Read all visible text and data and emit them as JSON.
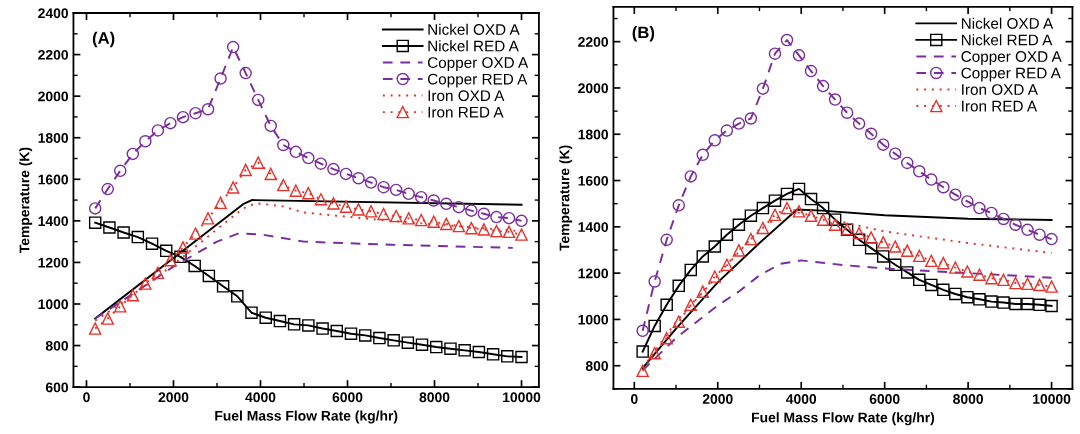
{
  "chart_data": [
    {
      "type": "line",
      "xlabel": "Fuel Mass Flow Rate (kg/hr)",
      "ylabel": "Temperature (K)",
      "annotations": [
        "(A)"
      ],
      "xlim": [
        -300,
        10400
      ],
      "xticks": [
        0,
        2000,
        4000,
        6000,
        8000,
        10000
      ],
      "ylim": [
        600,
        2400
      ],
      "yticks": [
        600,
        800,
        1000,
        1200,
        1400,
        1600,
        1800,
        2000,
        2200,
        2400
      ],
      "grid": false,
      "legend": "top right",
      "series": [
        {
          "name": "Nickel OXD A",
          "color": "#000000",
          "line_style": "solid",
          "x": [
            200,
            3600,
            3800,
            10000
          ],
          "values": [
            930,
            1480,
            1500,
            1478
          ]
        },
        {
          "name": "Nickel RED A",
          "color": "#000000",
          "line_style": "solid",
          "marker": "square",
          "x": [
            200,
            527,
            853,
            1180,
            1507,
            1833,
            2160,
            2487,
            2813,
            3140,
            3467,
            3793,
            4120,
            4447,
            4773,
            5100,
            5427,
            5753,
            6080,
            6407,
            6733,
            7060,
            7387,
            7713,
            8040,
            8367,
            8693,
            9020,
            9347,
            9673,
            10000
          ],
          "values": [
            1391,
            1368,
            1344,
            1322,
            1290,
            1256,
            1227,
            1183,
            1135,
            1085,
            1037,
            958,
            934,
            918,
            902,
            897,
            882,
            870,
            857,
            849,
            836,
            825,
            814,
            804,
            793,
            785,
            777,
            769,
            758,
            748,
            745
          ]
        },
        {
          "name": "Copper OXD A",
          "color": "#7b2d9e",
          "line_style": "dashed",
          "x": [
            200,
            1000,
            2000,
            3000,
            3500,
            4000,
            5000,
            7000,
            9800
          ],
          "values": [
            930,
            1040,
            1180,
            1300,
            1340,
            1335,
            1300,
            1285,
            1270
          ]
        },
        {
          "name": "Copper RED A",
          "color": "#7b2d9e",
          "line_style": "dashed",
          "marker": "circle",
          "x": [
            200,
            488,
            776,
            1065,
            1353,
            1641,
            1929,
            2218,
            2506,
            2794,
            3082,
            3371,
            3659,
            3947,
            4235,
            4524,
            4812,
            5100,
            5388,
            5676,
            5965,
            6253,
            6541,
            6829,
            7118,
            7406,
            7694,
            7982,
            8271,
            8559,
            8847,
            9135,
            9424,
            9712,
            10000
          ],
          "values": [
            1460,
            1553,
            1641,
            1722,
            1783,
            1835,
            1870,
            1899,
            1918,
            1937,
            2085,
            2236,
            2111,
            1982,
            1857,
            1765,
            1732,
            1702,
            1675,
            1649,
            1626,
            1605,
            1584,
            1562,
            1549,
            1530,
            1514,
            1498,
            1482,
            1466,
            1449,
            1434,
            1418,
            1413,
            1400
          ]
        },
        {
          "name": "Iron OXD A",
          "color": "#e8302a",
          "line_style": "dotted",
          "x": [
            200,
            1000,
            2000,
            3000,
            3600,
            3900,
            4500,
            5000,
            7000,
            10000
          ],
          "values": [
            920,
            1030,
            1190,
            1360,
            1460,
            1485,
            1470,
            1440,
            1400,
            1350
          ]
        },
        {
          "name": "Iron RED A",
          "color": "#e8302a",
          "line_style": "dotted",
          "marker": "triangle",
          "x": [
            200,
            488,
            776,
            1065,
            1353,
            1641,
            1929,
            2218,
            2506,
            2794,
            3082,
            3371,
            3659,
            3947,
            4235,
            4524,
            4812,
            5100,
            5388,
            5676,
            5965,
            6253,
            6541,
            6829,
            7118,
            7406,
            7694,
            7982,
            8271,
            8559,
            8847,
            9135,
            9424,
            9712,
            10000
          ],
          "values": [
            882,
            930,
            989,
            1042,
            1098,
            1150,
            1211,
            1272,
            1339,
            1412,
            1487,
            1561,
            1645,
            1680,
            1626,
            1572,
            1545,
            1533,
            1504,
            1484,
            1468,
            1455,
            1446,
            1433,
            1423,
            1412,
            1404,
            1396,
            1385,
            1375,
            1365,
            1359,
            1351,
            1347,
            1334
          ]
        }
      ]
    },
    {
      "type": "line",
      "xlabel": "Fuel Mass Flow Rate (kg/hr)",
      "ylabel": "Temperature (K)",
      "annotations": [
        "(B)"
      ],
      "xlim": [
        -500,
        10500
      ],
      "xticks": [
        0,
        2000,
        4000,
        6000,
        8000,
        10000
      ],
      "ylim": [
        700,
        2350
      ],
      "yticks": [
        800,
        1000,
        1200,
        1400,
        1600,
        1800,
        2000,
        2200
      ],
      "grid": false,
      "legend": "top right",
      "series": [
        {
          "name": "Nickel OXD A",
          "color": "#000000",
          "line_style": "solid",
          "x": [
            200,
            1000,
            2000,
            3000,
            3900,
            4500,
            6000,
            8000,
            10000
          ],
          "values": [
            790,
            960,
            1160,
            1330,
            1475,
            1470,
            1450,
            1435,
            1430
          ]
        },
        {
          "name": "Nickel RED A",
          "color": "#000000",
          "line_style": "solid",
          "marker": "square",
          "x": [
            200,
            488,
            776,
            1065,
            1353,
            1641,
            1929,
            2218,
            2506,
            2794,
            3082,
            3371,
            3659,
            3947,
            4235,
            4524,
            4812,
            5100,
            5388,
            5676,
            5965,
            6253,
            6541,
            6829,
            7118,
            7406,
            7694,
            7982,
            8271,
            8559,
            8847,
            9135,
            9424,
            9712,
            10000
          ],
          "values": [
            861,
            972,
            1063,
            1145,
            1214,
            1272,
            1315,
            1366,
            1409,
            1448,
            1481,
            1513,
            1542,
            1564,
            1520,
            1481,
            1431,
            1387,
            1344,
            1308,
            1272,
            1236,
            1203,
            1171,
            1149,
            1128,
            1110,
            1096,
            1087,
            1077,
            1073,
            1067,
            1067,
            1063,
            1058
          ]
        },
        {
          "name": "Copper OXD A",
          "color": "#7b2d9e",
          "line_style": "dashed",
          "x": [
            200,
            1000,
            2000,
            2500,
            3000,
            3500,
            4000,
            5000,
            6000,
            8000,
            10000
          ],
          "values": [
            780,
            920,
            1060,
            1120,
            1190,
            1240,
            1255,
            1235,
            1220,
            1200,
            1180
          ]
        },
        {
          "name": "Copper RED A",
          "color": "#7b2d9e",
          "line_style": "dashed",
          "marker": "circle",
          "x": [
            200,
            488,
            776,
            1065,
            1353,
            1641,
            1929,
            2218,
            2506,
            2794,
            3082,
            3371,
            3659,
            3947,
            4235,
            4524,
            4812,
            5100,
            5388,
            5676,
            5965,
            6253,
            6541,
            6829,
            7118,
            7406,
            7694,
            7982,
            8271,
            8559,
            8847,
            9135,
            9424,
            9712,
            10000
          ],
          "values": [
            951,
            1164,
            1344,
            1493,
            1618,
            1711,
            1774,
            1816,
            1846,
            1868,
            1997,
            2148,
            2207,
            2141,
            2073,
            2008,
            1950,
            1893,
            1846,
            1802,
            1755,
            1716,
            1676,
            1640,
            1604,
            1571,
            1539,
            1510,
            1481,
            1460,
            1434,
            1409,
            1387,
            1366,
            1347
          ]
        },
        {
          "name": "Iron OXD A",
          "color": "#e8302a",
          "line_style": "dotted",
          "x": [
            200,
            1000,
            2000,
            3000,
            3700,
            4500,
            6000,
            8000,
            10000
          ],
          "values": [
            790,
            990,
            1190,
            1390,
            1470,
            1440,
            1380,
            1330,
            1287
          ]
        },
        {
          "name": "Iron RED A",
          "color": "#e8302a",
          "line_style": "dotted",
          "marker": "triangle",
          "x": [
            200,
            488,
            776,
            1065,
            1353,
            1641,
            1929,
            2218,
            2506,
            2794,
            3082,
            3371,
            3659,
            3947,
            4235,
            4524,
            4812,
            5100,
            5388,
            5676,
            5965,
            6253,
            6541,
            6829,
            7118,
            7406,
            7694,
            7982,
            8271,
            8559,
            8847,
            9135,
            9424,
            9712,
            10000
          ],
          "values": [
            778,
            854,
            919,
            990,
            1063,
            1120,
            1185,
            1236,
            1298,
            1347,
            1395,
            1452,
            1481,
            1467,
            1448,
            1431,
            1409,
            1390,
            1373,
            1354,
            1333,
            1315,
            1297,
            1275,
            1253,
            1243,
            1224,
            1207,
            1193,
            1178,
            1171,
            1157,
            1154,
            1149,
            1142
          ]
        }
      ]
    }
  ]
}
